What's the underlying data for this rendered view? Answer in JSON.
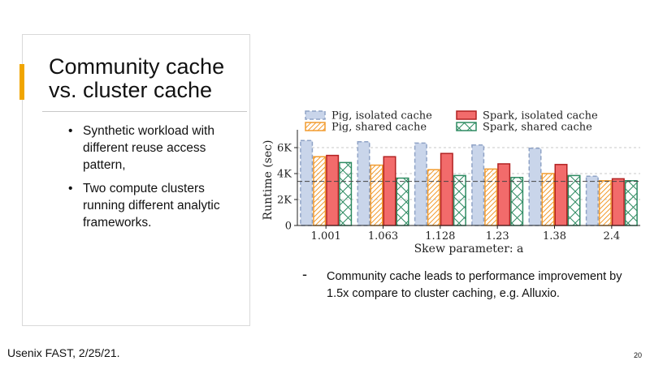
{
  "slide": {
    "title_lines": [
      "Community cache",
      "vs. cluster cache"
    ],
    "bullets": [
      "Synthetic workload with different reuse access pattern,",
      "Two compute clusters running different analytic frameworks."
    ],
    "bullet_glyph": "•",
    "note_dash": "-",
    "note": "Community cache leads to performance improvement by 1.5x compare to cluster caching, e.g. Alluxio.",
    "footer": "Usenix FAST, 2/25/21.",
    "page_number": "20",
    "accent_color": "#f0a500"
  },
  "chart_data": {
    "type": "bar",
    "title": "",
    "xlabel": "Skew parameter: a",
    "ylabel": "Runtime (sec)",
    "categories": [
      "1.001",
      "1.063",
      "1.128",
      "1.23",
      "1.38",
      "2.4"
    ],
    "ylim": [
      0,
      7000
    ],
    "yticks": [
      0,
      2000,
      4000,
      6000
    ],
    "ytick_labels": [
      "0",
      "2K",
      "4K",
      "6K"
    ],
    "grid": "horizontal dashed",
    "legend_position": "top",
    "reference_line": 3400,
    "series": [
      {
        "name": "Pig, isolated cache",
        "values": [
          6550,
          6450,
          6350,
          6200,
          5950,
          3800
        ],
        "fill": "#c9d5ea",
        "stroke": "#8fa3c6",
        "pattern": "none",
        "dashed": true
      },
      {
        "name": "Pig, shared cache",
        "values": [
          5300,
          4650,
          4300,
          4350,
          4000,
          3450
        ],
        "fill": "#fde3c4",
        "stroke": "#f29b2e",
        "pattern": "hatch",
        "dashed": false
      },
      {
        "name": "Spark, isolated cache",
        "values": [
          5400,
          5300,
          5550,
          4750,
          4700,
          3600
        ],
        "fill": "#f26b6b",
        "stroke": "#b22222",
        "pattern": "none",
        "dashed": false
      },
      {
        "name": "Spark, shared cache",
        "values": [
          4850,
          3650,
          3850,
          3700,
          3850,
          3450
        ],
        "fill": "#bfe6d6",
        "stroke": "#2e8b62",
        "pattern": "cross",
        "dashed": false
      }
    ]
  }
}
